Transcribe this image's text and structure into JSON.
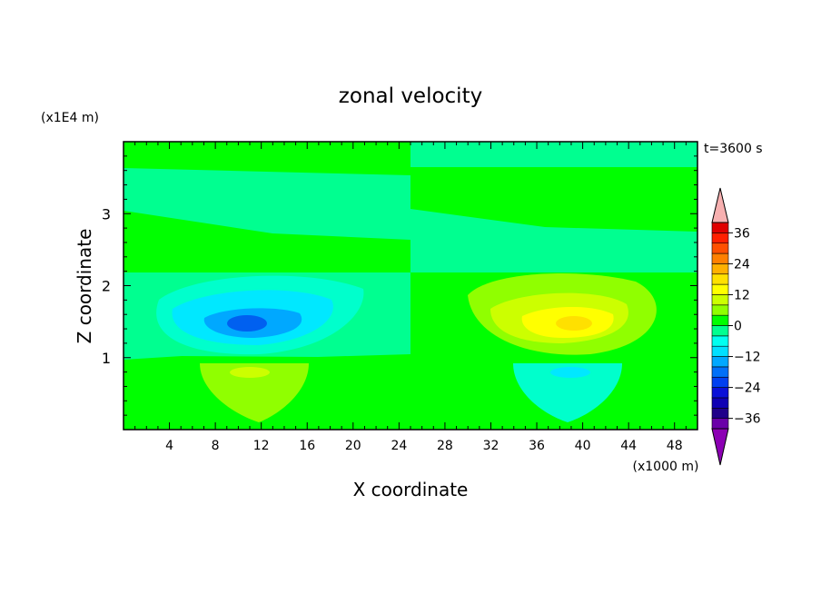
{
  "chart_data": {
    "type": "heatmap",
    "title": "zonal velocity",
    "xlabel": "X coordinate",
    "ylabel": "Z coordinate",
    "x_unit_label": "(x1000 m)",
    "y_unit_label": "(x1E4 m)",
    "time_label": "t=3600 s",
    "xlim": [
      0,
      50
    ],
    "ylim": [
      0,
      4
    ],
    "x_ticks": [
      4,
      8,
      12,
      16,
      20,
      24,
      28,
      32,
      36,
      40,
      44,
      48
    ],
    "y_ticks": [
      1,
      2,
      3
    ],
    "colorbar": {
      "levels": [
        -40,
        -36,
        -32,
        -28,
        -24,
        -20,
        -16,
        -12,
        -8,
        -4,
        0,
        4,
        8,
        12,
        16,
        20,
        24,
        28,
        32,
        36,
        40
      ],
      "labels": [
        -36,
        -24,
        -12,
        0,
        12,
        24,
        36
      ],
      "colors": [
        "#6a00a8",
        "#20008a",
        "#1000b4",
        "#0a10d8",
        "#0040f0",
        "#0070f8",
        "#00a8ff",
        "#00e0ff",
        "#00fff0",
        "#00ff90",
        "#00ff00",
        "#90ff00",
        "#ccff00",
        "#ffff00",
        "#ffe000",
        "#ffb000",
        "#ff8000",
        "#ff5000",
        "#ff2000",
        "#e00000"
      ],
      "under_color": "#8c00b4",
      "over_color": "#f7b0b0"
    },
    "regions": [
      {
        "name": "background",
        "level": 0,
        "color": "#00ff00"
      },
      {
        "name": "upper-band-left",
        "x": [
          0,
          25
        ],
        "z": [
          3.08,
          3.65
        ],
        "value": -2,
        "color": "#00ff90"
      },
      {
        "name": "upper-region-right",
        "x": [
          25,
          50
        ],
        "z": [
          2.2,
          3.6
        ],
        "value": -2,
        "color": "#00ff90"
      },
      {
        "name": "mid-band-left",
        "x": [
          0,
          25
        ],
        "z": [
          1.0,
          2.2
        ],
        "value": -2,
        "color": "#00ff90"
      },
      {
        "name": "negative-core",
        "center": [
          11,
          1.47
        ],
        "value": -20,
        "color": "#0070f8"
      },
      {
        "name": "positive-core",
        "center": [
          39,
          1.47
        ],
        "value": 12,
        "color": "#ffff00"
      },
      {
        "name": "lower-lobe-left",
        "center": [
          11,
          0.8
        ],
        "value": 6,
        "color": "#90ff00"
      },
      {
        "name": "lower-lobe-right",
        "center": [
          39,
          0.8
        ],
        "value": -6,
        "color": "#00fff0"
      }
    ]
  }
}
